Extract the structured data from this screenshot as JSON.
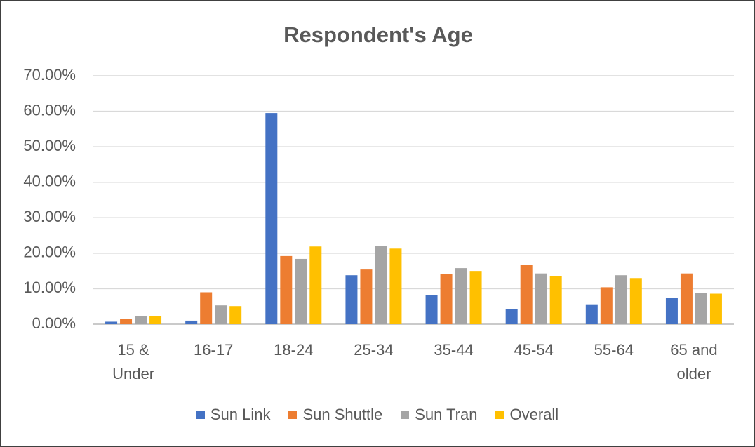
{
  "chart_data": {
    "type": "bar",
    "title": "Respondent's Age",
    "categories": [
      "15 & Under",
      "16-17",
      "18-24",
      "25-34",
      "35-44",
      "45-54",
      "55-64",
      "65 and older"
    ],
    "series": [
      {
        "name": "Sun Link",
        "color": "#4472c4",
        "values": [
          0.7,
          1.0,
          59.5,
          13.8,
          8.3,
          4.3,
          5.6,
          7.4
        ]
      },
      {
        "name": "Sun Shuttle",
        "color": "#ed7d31",
        "values": [
          1.4,
          9.0,
          19.2,
          15.4,
          14.2,
          16.8,
          10.4,
          14.3
        ]
      },
      {
        "name": "Sun Tran",
        "color": "#a5a5a5",
        "values": [
          2.2,
          5.3,
          18.4,
          22.1,
          15.8,
          14.3,
          13.8,
          8.8
        ]
      },
      {
        "name": "Overall",
        "color": "#ffc000",
        "values": [
          2.2,
          5.1,
          21.9,
          21.3,
          15.0,
          13.5,
          13.0,
          8.6
        ]
      }
    ],
    "ylim": [
      0,
      70
    ],
    "yticks": [
      {
        "value": 0,
        "label": "0.00%"
      },
      {
        "value": 10,
        "label": "10.00%"
      },
      {
        "value": 20,
        "label": "20.00%"
      },
      {
        "value": 30,
        "label": "30.00%"
      },
      {
        "value": 40,
        "label": "40.00%"
      },
      {
        "value": 50,
        "label": "50.00%"
      },
      {
        "value": 60,
        "label": "60.00%"
      },
      {
        "value": 70,
        "label": "70.00%"
      }
    ],
    "grid": true,
    "legend": "bottom"
  }
}
